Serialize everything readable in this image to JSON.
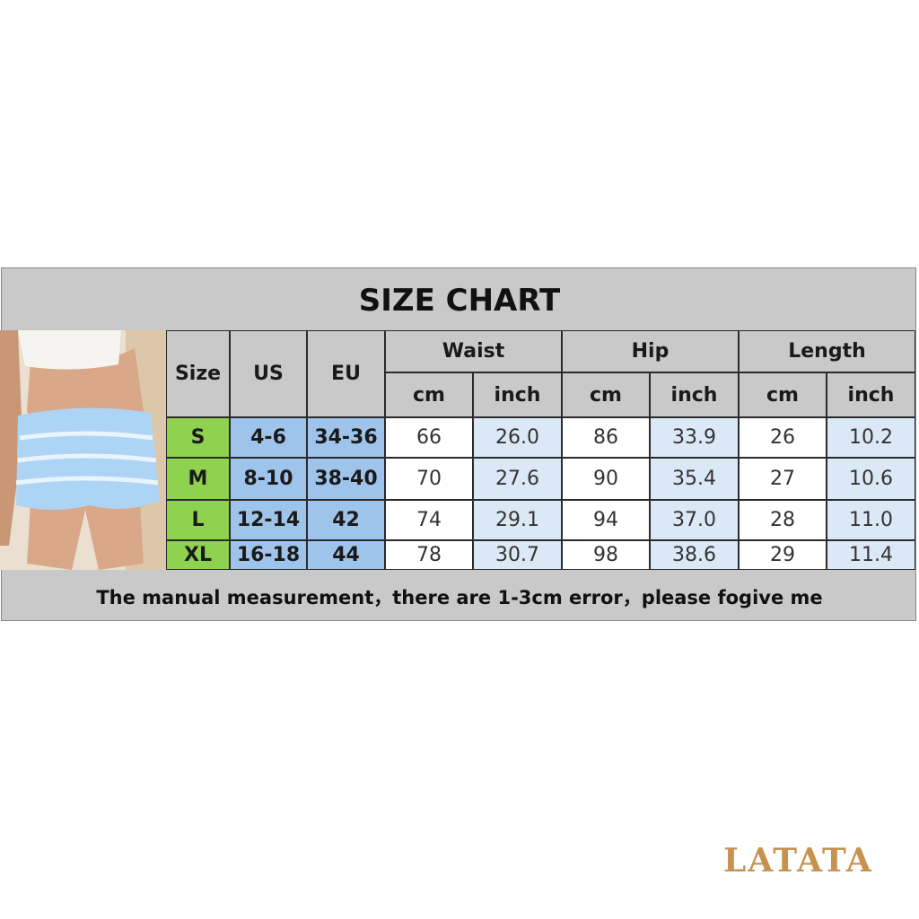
{
  "title": "SIZE CHART",
  "headers": {
    "size": "Size",
    "us": "US",
    "eu": "EU",
    "groups": [
      "Waist",
      "Hip",
      "Length"
    ],
    "units": [
      "cm",
      "inch",
      "cm",
      "inch",
      "cm",
      "inch"
    ]
  },
  "rows": [
    {
      "size": "S",
      "us": "4-6",
      "eu": "34-36",
      "values": [
        "66",
        "26.0",
        "86",
        "33.9",
        "26",
        "10.2"
      ]
    },
    {
      "size": "M",
      "us": "8-10",
      "eu": "38-40",
      "values": [
        "70",
        "27.6",
        "90",
        "35.4",
        "27",
        "10.6"
      ]
    },
    {
      "size": "L",
      "us": "12-14",
      "eu": "42",
      "values": [
        "74",
        "29.1",
        "94",
        "37.0",
        "28",
        "11.0"
      ]
    },
    {
      "size": "XL",
      "us": "16-18",
      "eu": "44",
      "values": [
        "78",
        "30.7",
        "98",
        "38.6",
        "29",
        "11.4"
      ]
    }
  ],
  "footer": "The manual measurement，there are 1-3cm error，please fogive me",
  "brand": "LATATA",
  "colors": {
    "header": "#c9c9c9",
    "size": "#8fd24f",
    "us_eu": "#9fc4ec",
    "inch": "#dbe9f7",
    "brand": "#c6924f"
  }
}
